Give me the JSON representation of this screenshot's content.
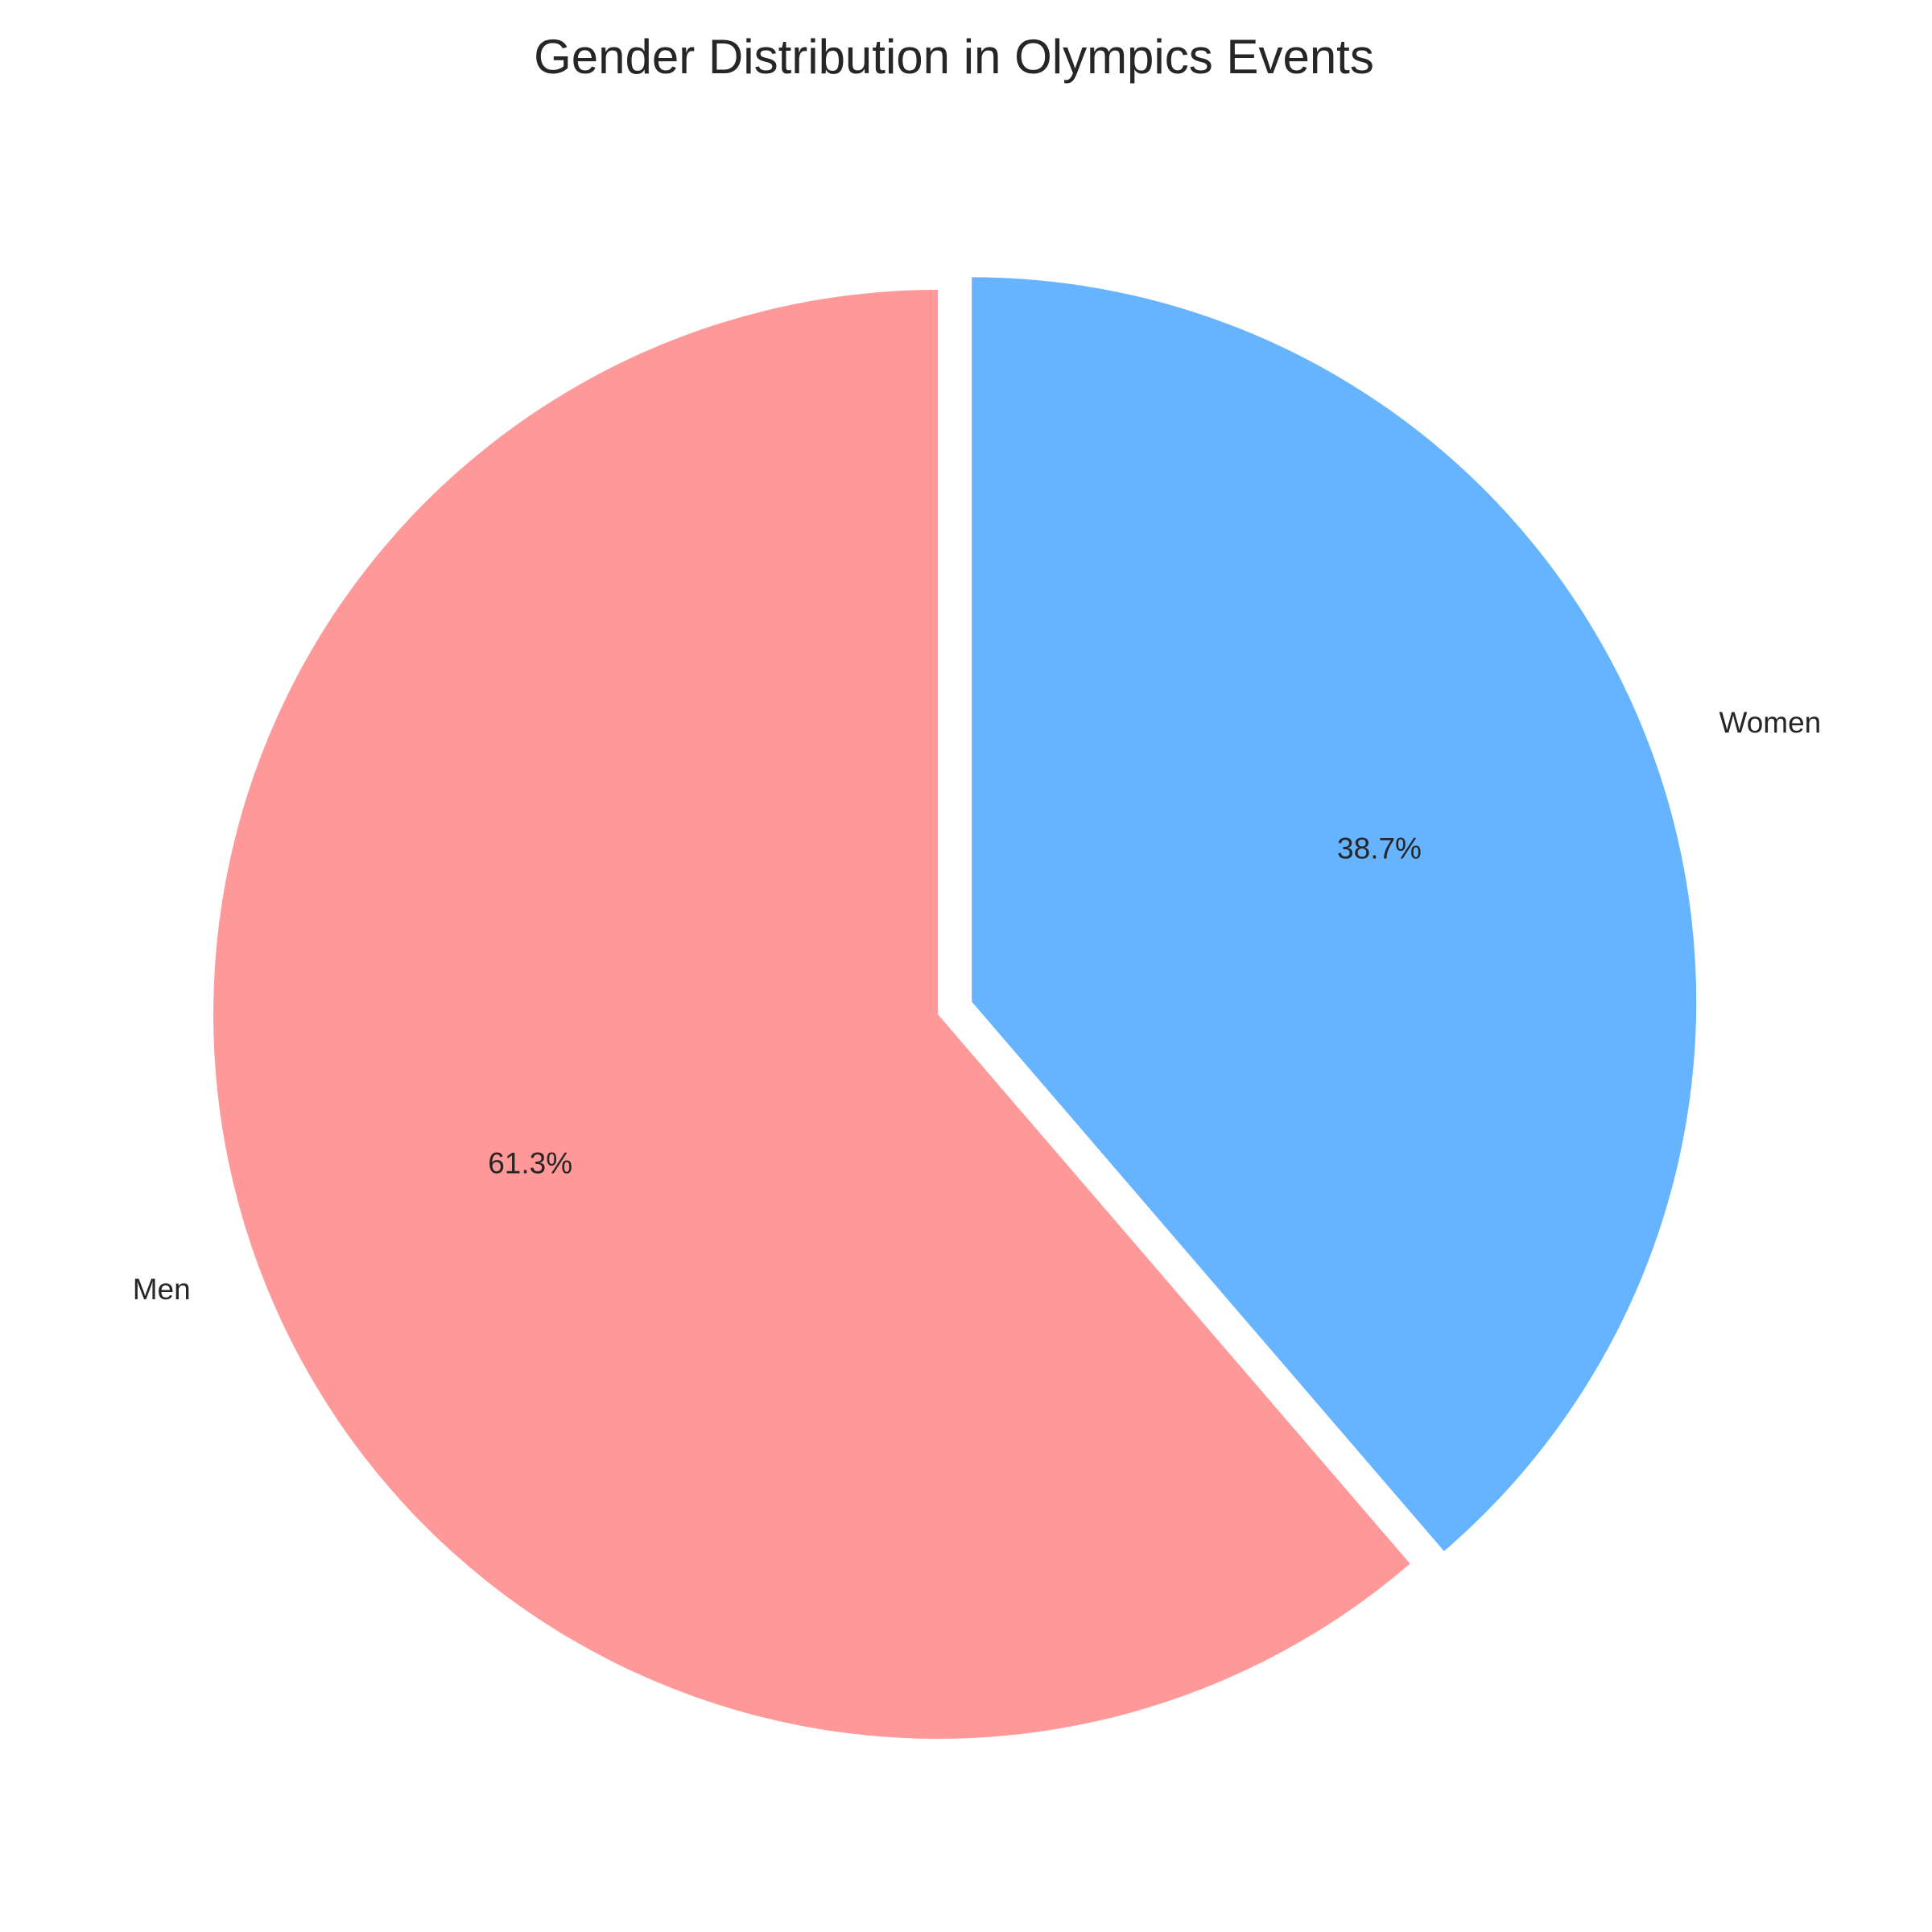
{
  "chart_data": {
    "type": "pie",
    "title": "Gender Distribution in Olympics Events",
    "labels": [
      "Men",
      "Women"
    ],
    "values": [
      61.3,
      38.7
    ],
    "percent_labels": [
      "61.3%",
      "38.7%"
    ],
    "colors": [
      "#FF9999",
      "#66B3FF"
    ],
    "start_angle_deg": 90,
    "direction": "counterclockwise",
    "exploded": [
      false,
      true
    ]
  }
}
